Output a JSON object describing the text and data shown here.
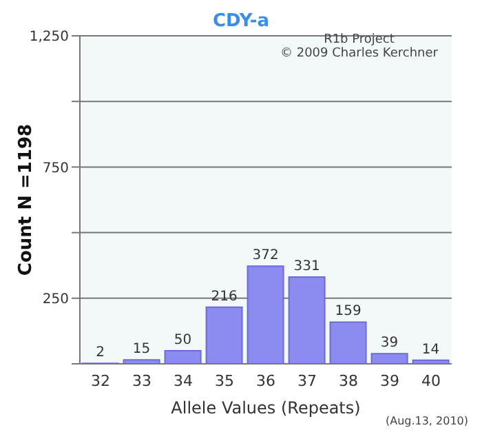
{
  "chart_data": {
    "type": "bar",
    "title": "CDY-a",
    "xlabel": "Allele Values (Repeats)",
    "ylabel": "Count N =1198",
    "categories": [
      "32",
      "33",
      "34",
      "35",
      "36",
      "37",
      "38",
      "39",
      "40"
    ],
    "values": [
      2,
      15,
      50,
      216,
      372,
      331,
      159,
      39,
      14
    ],
    "color": "#8c8cf0",
    "ylim": [
      0,
      1250
    ],
    "yticks": [
      {
        "value": 0,
        "label": null
      },
      250,
      {
        "value": 500,
        "label": null
      },
      750,
      {
        "value": 1000,
        "label": null
      },
      "1,250"
    ],
    "grid": "y",
    "data_labels": true,
    "annotations": [
      "R1b Project",
      "© 2009 Charles Kerchner",
      "(Aug.13, 2010)"
    ]
  }
}
